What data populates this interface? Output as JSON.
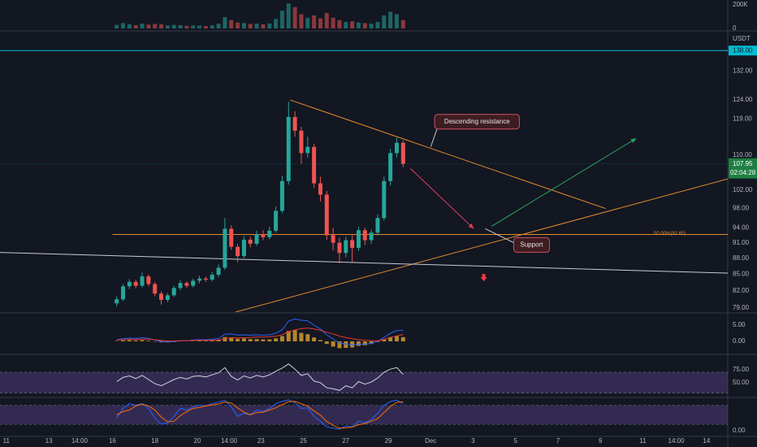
{
  "chart_data": {
    "type": "candlestick",
    "y_unit": "USDT",
    "log": true,
    "up_color": "#26a69a",
    "down_color": "#ef5350",
    "x": [
      5.2,
      5.5,
      5.8,
      6.1,
      6.4,
      6.7,
      7,
      7.3,
      7.6,
      7.9,
      8.2,
      8.5,
      8.8,
      9.1,
      9.4,
      9.7,
      10,
      10.3,
      10.6,
      10.9,
      11.2,
      11.5,
      11.8,
      12.1,
      12.4,
      12.7,
      13,
      13.3,
      13.6,
      13.9,
      14.2,
      14.5,
      14.8,
      15.1,
      15.4,
      15.7,
      16,
      16.3,
      16.6,
      16.9,
      17.2,
      17.5,
      17.8,
      18.1,
      18.4,
      18.7
    ],
    "xlim": [
      -0.3,
      34
    ],
    "xticks": [
      {
        "value": 0,
        "label": "11"
      },
      {
        "value": 2,
        "label": "13"
      },
      {
        "value": 3.45,
        "label": "14:00"
      },
      {
        "value": 5,
        "label": "16"
      },
      {
        "value": 7,
        "label": "18"
      },
      {
        "value": 9,
        "label": "20"
      },
      {
        "value": 10.5,
        "label": "14:00"
      },
      {
        "value": 12,
        "label": "23"
      },
      {
        "value": 14,
        "label": "25"
      },
      {
        "value": 16,
        "label": "27"
      },
      {
        "value": 18,
        "label": "29"
      },
      {
        "value": 20,
        "label": "Dec"
      },
      {
        "value": 22,
        "label": "3"
      },
      {
        "value": 24,
        "label": "5"
      },
      {
        "value": 26,
        "label": "7"
      },
      {
        "value": 28,
        "label": "9"
      },
      {
        "value": 30,
        "label": "11"
      },
      {
        "value": 31.57,
        "label": "14:00"
      },
      {
        "value": 33,
        "label": "14"
      }
    ],
    "open": [
      79.8,
      80.5,
      82.8,
      83.6,
      82.9,
      84.6,
      83.2,
      81.5,
      80.4,
      81.2,
      82.5,
      83.4,
      82.9,
      83.8,
      84.2,
      84.0,
      84.9,
      86.2,
      93.8,
      90.2,
      88.4,
      91.6,
      90.8,
      92.7,
      92.1,
      93.4,
      97.5,
      104.0,
      119.5,
      116.0,
      110.5,
      112.0,
      103.5,
      101.0,
      92.5,
      91.0,
      89.0,
      91.5,
      90.0,
      93.5,
      91.5,
      93.0,
      96.0,
      104.0,
      110.5,
      113.0
    ],
    "high": [
      81.0,
      83.2,
      84.1,
      84.0,
      85.3,
      85.0,
      83.6,
      81.9,
      81.6,
      82.9,
      83.9,
      83.7,
      84.2,
      84.7,
      84.6,
      85.4,
      86.8,
      96.0,
      94.5,
      90.8,
      92.3,
      92.2,
      93.4,
      93.5,
      94.2,
      98.4,
      105.2,
      123.5,
      121.0,
      117.0,
      114.5,
      112.8,
      105.0,
      101.8,
      94.0,
      92.0,
      92.2,
      92.5,
      94.2,
      94.0,
      93.6,
      96.8,
      105.0,
      111.5,
      114.2,
      113.6
    ],
    "low": [
      79.3,
      80.2,
      82.3,
      82.4,
      82.6,
      82.8,
      81.0,
      79.6,
      80.0,
      80.9,
      82.1,
      82.5,
      82.6,
      83.3,
      83.6,
      83.7,
      84.5,
      85.8,
      89.6,
      87.2,
      88.0,
      90.1,
      90.4,
      91.5,
      91.7,
      93.0,
      97.0,
      103.2,
      114.5,
      108.0,
      109.5,
      102.5,
      99.5,
      91.5,
      89.5,
      87.0,
      88.2,
      87.2,
      89.4,
      90.5,
      90.8,
      92.4,
      95.5,
      103.0,
      109.5,
      107.2
    ],
    "close": [
      80.5,
      82.8,
      83.6,
      82.9,
      84.6,
      83.2,
      81.5,
      80.4,
      81.2,
      82.5,
      83.4,
      82.9,
      83.8,
      84.2,
      84.0,
      84.9,
      86.2,
      93.8,
      90.2,
      88.4,
      91.6,
      90.8,
      92.7,
      92.1,
      93.4,
      97.5,
      104.0,
      119.5,
      116.0,
      110.5,
      112.0,
      103.5,
      101.0,
      92.5,
      91.0,
      89.0,
      91.5,
      90.0,
      93.5,
      91.5,
      93.0,
      96.0,
      104.0,
      110.5,
      113.0,
      107.95
    ],
    "ylim": [
      78.3,
      143.5
    ],
    "yticks": [
      {
        "value": 132,
        "label": "132.00"
      },
      {
        "value": 124,
        "label": "124.00"
      },
      {
        "value": 119,
        "label": "119.00"
      },
      {
        "value": 110,
        "label": "110.00"
      },
      {
        "value": 102,
        "label": "102.00"
      },
      {
        "value": 98,
        "label": "98.00"
      },
      {
        "value": 94,
        "label": "94.00"
      },
      {
        "value": 91,
        "label": "91.00"
      },
      {
        "value": 88,
        "label": "88.00"
      },
      {
        "value": 85,
        "label": "85.00"
      },
      {
        "value": 82,
        "label": "82.00"
      },
      {
        "value": 79,
        "label": "79.00"
      }
    ],
    "price_line": {
      "value": 138,
      "label": "138.00",
      "color": "#00bcd4"
    },
    "last_price": {
      "value": 107.95,
      "label": "107.95",
      "countdown": "02:04:28"
    },
    "drawings": [
      {
        "type": "trend",
        "color": "#e08a2e",
        "points": [
          [
            13.37,
            124.0
          ],
          [
            28.24,
            98.0
          ]
        ]
      },
      {
        "type": "trend",
        "color": "#e08a2e",
        "points": [
          [
            10.8,
            78.3
          ],
          [
            34,
            104.5
          ]
        ]
      },
      {
        "type": "trend",
        "color": "#c8cbd3",
        "points": [
          [
            -0.3,
            89.1
          ],
          [
            34,
            85.2
          ]
        ]
      },
      {
        "type": "horizontal",
        "color": "#e08a2e",
        "from": 5,
        "value": 92.65,
        "label": "50.00%(92.65)"
      },
      {
        "type": "arrow",
        "color": "#e0405a",
        "points": [
          [
            19.04,
            106.9
          ],
          [
            22.03,
            93.8
          ]
        ]
      },
      {
        "type": "arrow",
        "color": "#26a65b",
        "points": [
          [
            22.87,
            94.3
          ],
          [
            29.69,
            114.1
          ]
        ]
      },
      {
        "type": "marker",
        "color": "#f23645",
        "point": [
          22.5,
          84.3
        ]
      },
      {
        "type": "callout",
        "point": [
          20.0,
          112.0
        ],
        "text": "Descending resistance"
      },
      {
        "type": "callout",
        "point": [
          22.57,
          93.8
        ],
        "text": "Support"
      }
    ],
    "panels": [
      {
        "type": "volume",
        "ylim": [
          0,
          240000
        ],
        "yticks": [
          {
            "value": 200000,
            "label": "200K"
          },
          0
        ],
        "values": [
          30000,
          45000,
          35000,
          28000,
          40000,
          32000,
          38000,
          35000,
          25000,
          30000,
          28000,
          22000,
          25000,
          24000,
          20000,
          26000,
          40000,
          95000,
          70000,
          50000,
          45000,
          38000,
          40000,
          35000,
          42000,
          80000,
          150000,
          210000,
          180000,
          120000,
          90000,
          110000,
          85000,
          130000,
          90000,
          70000,
          55000,
          60000,
          50000,
          45000,
          40000,
          55000,
          110000,
          140000,
          120000,
          70000
        ]
      },
      {
        "type": "macd",
        "ylim": [
          -3.75,
          8
        ],
        "yticks": [
          {
            "value": 5,
            "label": "5.00"
          },
          {
            "value": 0,
            "label": "0.00"
          }
        ],
        "histogram": {
          "color": "#d49b2a",
          "values": [
            0.1,
            0.3,
            0.4,
            0.3,
            0.4,
            0.2,
            -0.1,
            -0.3,
            -0.3,
            -0.2,
            0,
            0,
            0.1,
            0.2,
            0.2,
            0.3,
            0.5,
            1.3,
            1.2,
            0.8,
            0.9,
            0.7,
            0.7,
            0.6,
            0.6,
            0.9,
            1.6,
            3.2,
            3.4,
            2.6,
            2.2,
            1.2,
            0.4,
            -0.8,
            -1.6,
            -2.1,
            -2.0,
            -1.9,
            -1.4,
            -1.2,
            -0.8,
            -0.2,
            0.6,
            1.3,
            1.6,
            1.3
          ]
        },
        "series": [
          {
            "color": "#2962ff",
            "values": [
              0.5,
              0.8,
              1.0,
              0.9,
              1.1,
              0.9,
              0.4,
              0,
              -0.2,
              -0.1,
              0.2,
              0.2,
              0.4,
              0.5,
              0.5,
              0.6,
              0.9,
              2.2,
              2.3,
              1.9,
              2.0,
              1.9,
              2.0,
              1.9,
              2.0,
              2.5,
              3.6,
              6.2,
              6.9,
              6.5,
              6.3,
              5.0,
              3.8,
              2.0,
              0.7,
              -0.5,
              -0.8,
              -1.1,
              -0.9,
              -0.9,
              -0.6,
              0,
              1.2,
              2.5,
              3.3,
              3.4
            ]
          },
          {
            "color": "#e53935",
            "values": [
              0.4,
              0.5,
              0.6,
              0.6,
              0.7,
              0.7,
              0.5,
              0.3,
              0.1,
              0.1,
              0.2,
              0.2,
              0.3,
              0.3,
              0.3,
              0.3,
              0.4,
              0.9,
              1.1,
              1.1,
              1.1,
              1.2,
              1.3,
              1.3,
              1.4,
              1.6,
              2.0,
              3.0,
              3.5,
              3.9,
              4.1,
              3.8,
              3.4,
              2.8,
              2.3,
              1.6,
              1.2,
              0.8,
              0.5,
              0.3,
              0.2,
              0.2,
              0.6,
              1.2,
              1.7,
              2.1
            ]
          }
        ]
      },
      {
        "type": "oscillator",
        "ylim": [
          23,
          103
        ],
        "yticks": [
          {
            "value": 75,
            "label": "75.00"
          },
          {
            "value": 50,
            "label": "50.00"
          }
        ],
        "band": [
          30,
          70
        ],
        "band_color": "#7e57c2",
        "series": [
          {
            "color": "#d1d4dc",
            "values": [
              52,
              60,
              63,
              58,
              64,
              56,
              48,
              44,
              50,
              56,
              60,
              57,
              62,
              63,
              61,
              65,
              69,
              79,
              62,
              55,
              63,
              59,
              64,
              61,
              65,
              72,
              78,
              86,
              76,
              64,
              67,
              53,
              50,
              40,
              38,
              35,
              44,
              40,
              52,
              47,
              51,
              59,
              70,
              76,
              79,
              66
            ]
          }
        ]
      },
      {
        "type": "oscillator",
        "ylim": [
          -18,
          102
        ],
        "yticks": [
          {
            "value": 0,
            "label": "0.00"
          }
        ],
        "band": [
          20,
          80
        ],
        "band_color": "#7e57c2",
        "series": [
          {
            "color": "#2962ff",
            "values": [
              40,
              70,
              85,
              80,
              85,
              70,
              40,
              20,
              25,
              45,
              70,
              65,
              75,
              80,
              78,
              85,
              90,
              95,
              75,
              45,
              55,
              50,
              65,
              60,
              70,
              85,
              92,
              97,
              88,
              70,
              72,
              45,
              30,
              12,
              8,
              5,
              15,
              12,
              30,
              25,
              35,
              55,
              80,
              92,
              96,
              85
            ]
          },
          {
            "color": "#ff6d00",
            "values": [
              50,
              60,
              65,
              78,
              83,
              78,
              65,
              43,
              28,
              30,
              47,
              60,
              70,
              73,
              78,
              81,
              84,
              90,
              87,
              72,
              58,
              50,
              57,
              58,
              65,
              72,
              82,
              91,
              92,
              85,
              77,
              62,
              49,
              29,
              17,
              8,
              9,
              11,
              19,
              22,
              30,
              38,
              57,
              76,
              89,
              91
            ]
          }
        ]
      }
    ]
  }
}
